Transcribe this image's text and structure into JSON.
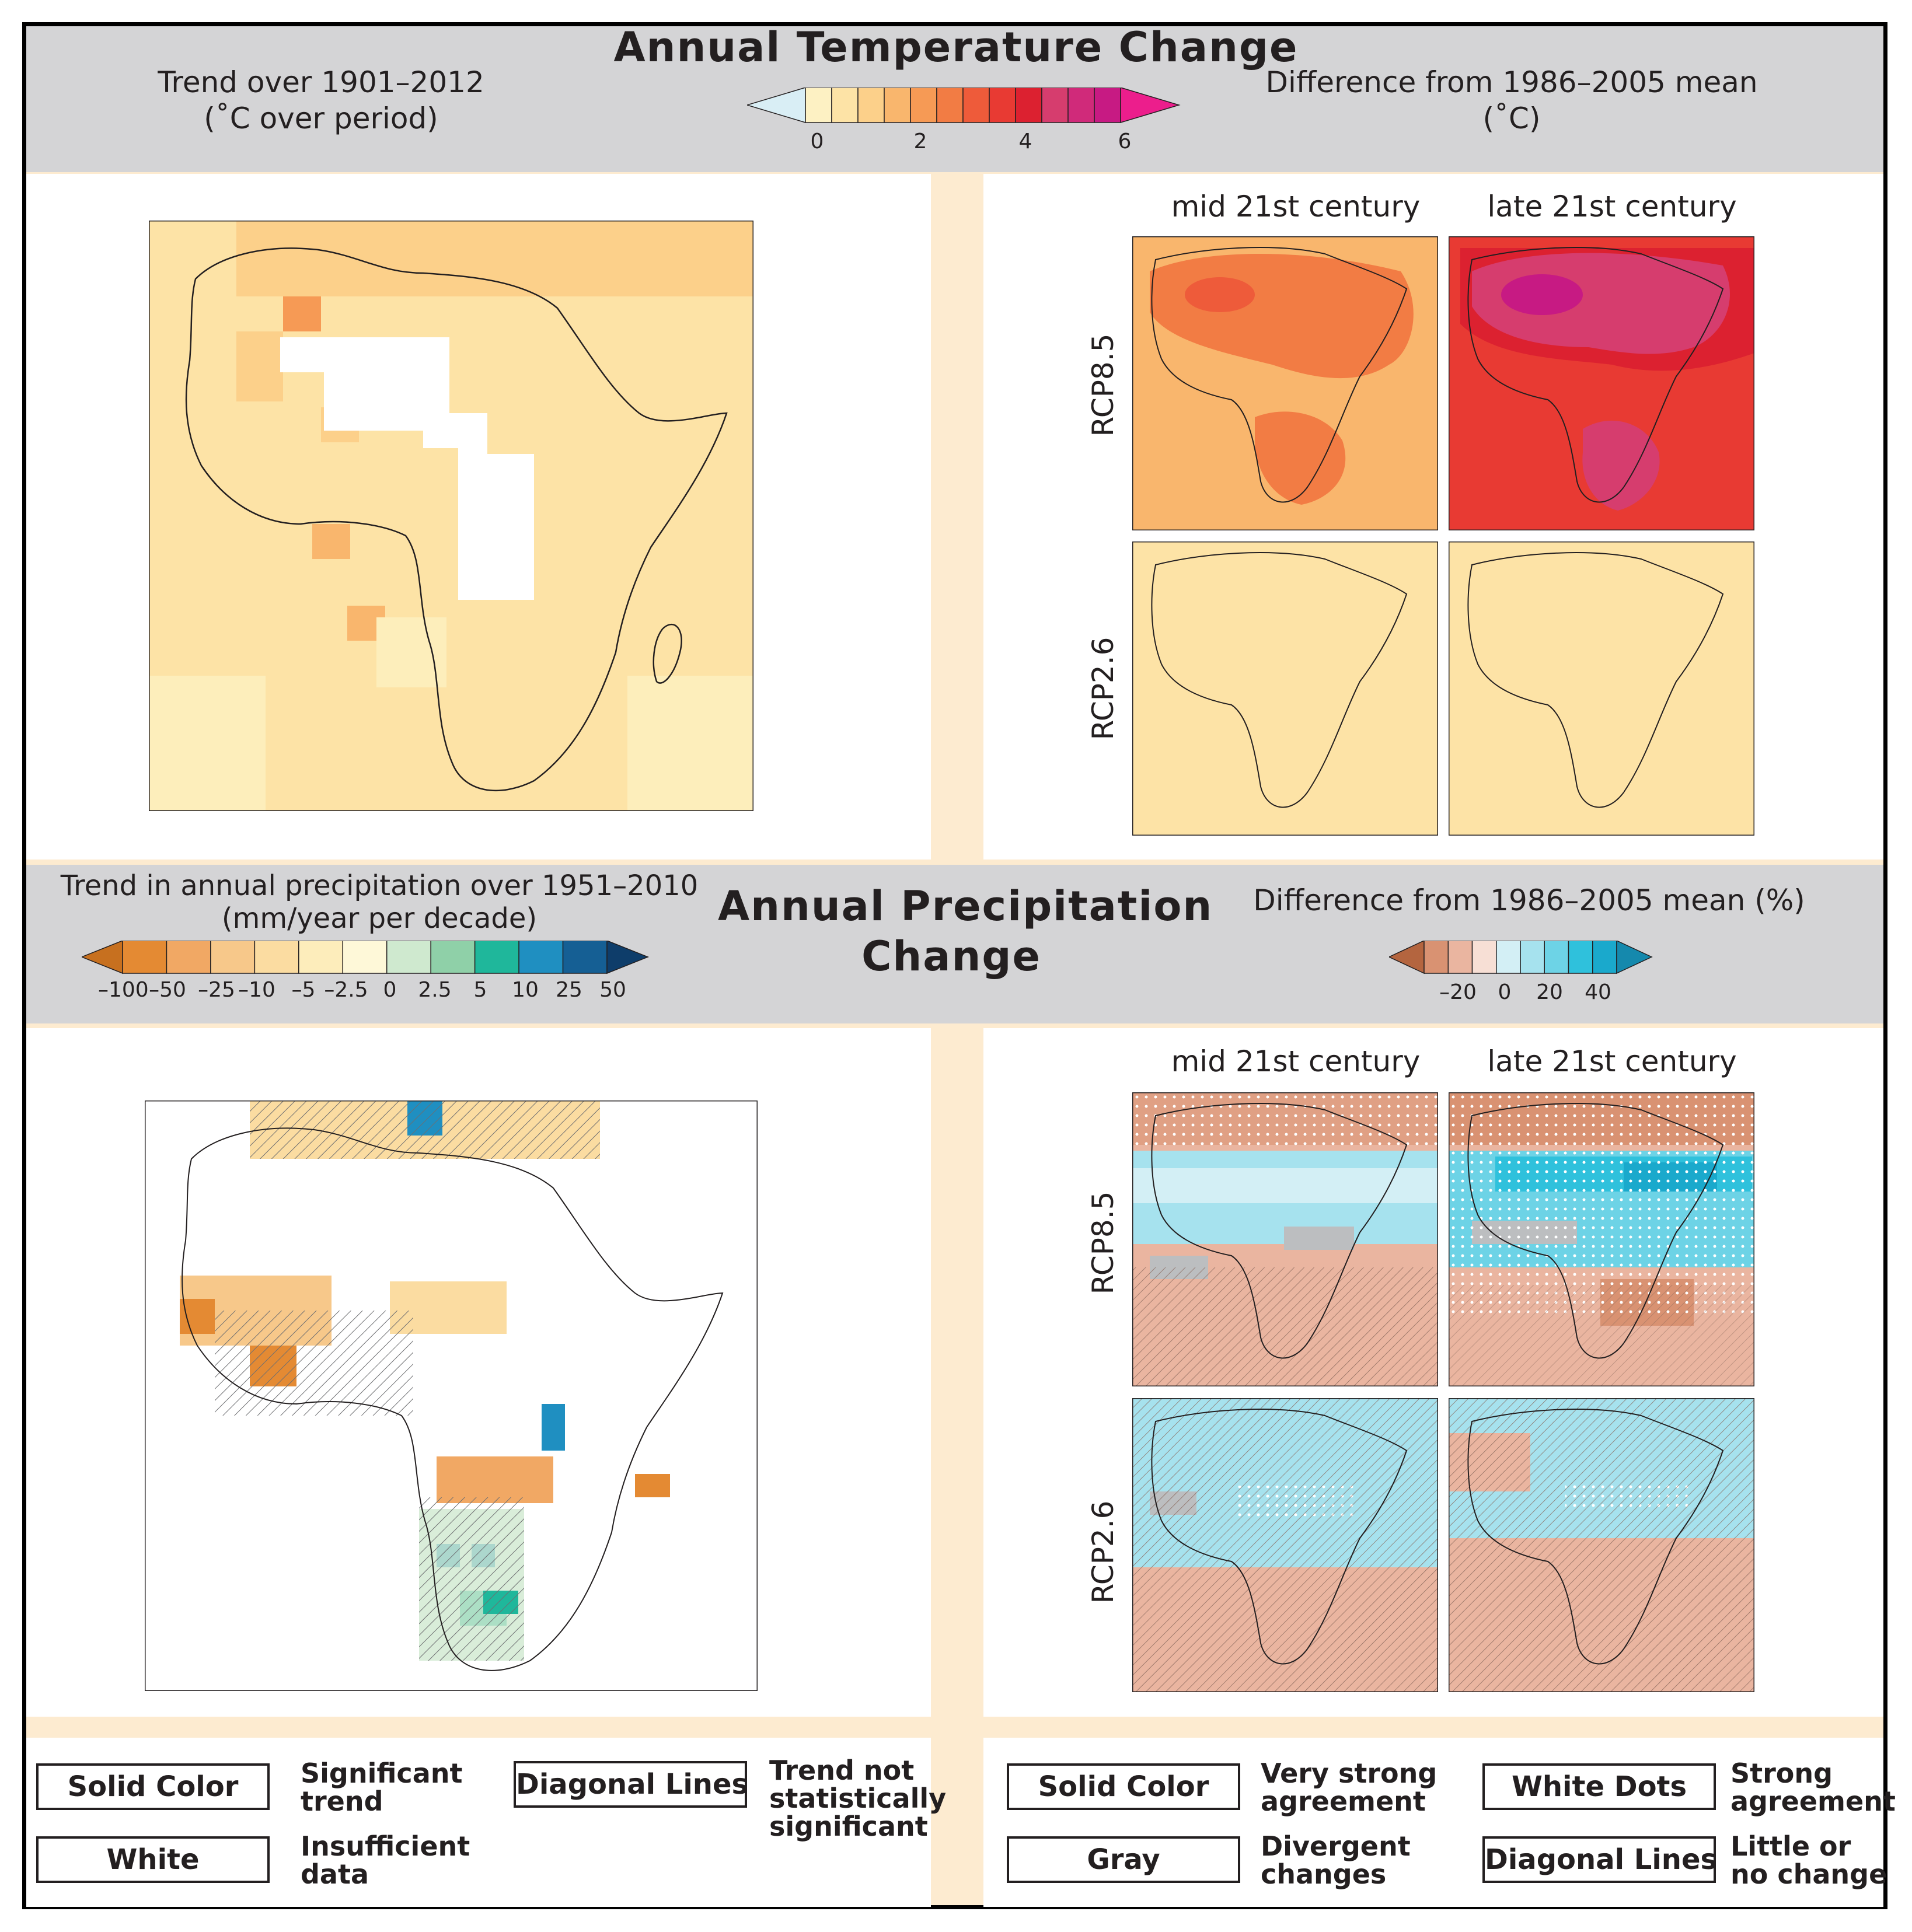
{
  "temperature": {
    "title": "Annual Temperature Change",
    "left_subtitle": [
      "Trend over 1901–2012",
      "(˚C over period)"
    ],
    "right_subtitle": [
      "Difference from 1986–2005 mean",
      "(˚C)"
    ],
    "colorbar": {
      "ticks": [
        "0",
        "2",
        "4",
        "6"
      ],
      "colors": [
        "#d9eef5",
        "#fdf1c3",
        "#fde3a6",
        "#fcd08a",
        "#f9b66d",
        "#f69a55",
        "#f27c44",
        "#ee5b3a",
        "#e83a33",
        "#dc2130",
        "#d63d6e",
        "#d02a7a",
        "#c71a83",
        "#ec1e8c"
      ]
    },
    "column_labels": [
      "mid 21st century",
      "late 21st century"
    ],
    "row_labels": [
      "RCP8.5",
      "RCP2.6"
    ]
  },
  "precipitation": {
    "title": [
      "Annual Precipitation",
      "Change"
    ],
    "left_subtitle": [
      "Trend in annual precipitation over 1951–2010",
      "(mm/year per decade)"
    ],
    "left_colorbar": {
      "ticks": [
        "–100",
        "–50",
        "–25",
        "–10",
        "–5",
        "–2.5",
        "0",
        "2.5",
        "5",
        "10",
        "25",
        "50"
      ],
      "colors": [
        "#c7701f",
        "#e48a33",
        "#f1a864",
        "#f7c88a",
        "#fbdca1",
        "#fdedbb",
        "#fef8d8",
        "#cfe9cf",
        "#8fd0a8",
        "#1fb79b",
        "#1f8fc1",
        "#155f94",
        "#0e3d6a"
      ]
    },
    "right_subtitle": "Difference from 1986–2005 mean (%)",
    "right_colorbar": {
      "ticks": [
        "–20",
        "0",
        "20",
        "40"
      ],
      "colors": [
        "#b4653f",
        "#d99272",
        "#eab5a0",
        "#f7dfd5",
        "#d3eff5",
        "#a6e2ee",
        "#6dd3e6",
        "#2fc1dc",
        "#1aa9cc",
        "#1589ad"
      ]
    },
    "column_labels": [
      "mid 21st century",
      "late 21st century"
    ],
    "row_labels": [
      "RCP8.5",
      "RCP2.6"
    ]
  },
  "legend_left": [
    {
      "box": "Solid Color",
      "desc": [
        "Significant",
        "trend"
      ]
    },
    {
      "box": "White",
      "desc": [
        "Insufficient",
        "data"
      ]
    },
    {
      "box": "Diagonal Lines",
      "desc": [
        "Trend not",
        "statistically",
        "significant"
      ]
    }
  ],
  "legend_right": [
    {
      "box": "Solid Color",
      "desc": [
        "Very strong",
        "agreement"
      ]
    },
    {
      "box": "Gray",
      "desc": [
        "Divergent",
        "changes"
      ]
    },
    {
      "box": "White Dots",
      "desc": [
        "Strong",
        "agreement"
      ]
    },
    {
      "box": "Diagonal Lines",
      "desc": [
        "Little or",
        "no change"
      ]
    }
  ]
}
